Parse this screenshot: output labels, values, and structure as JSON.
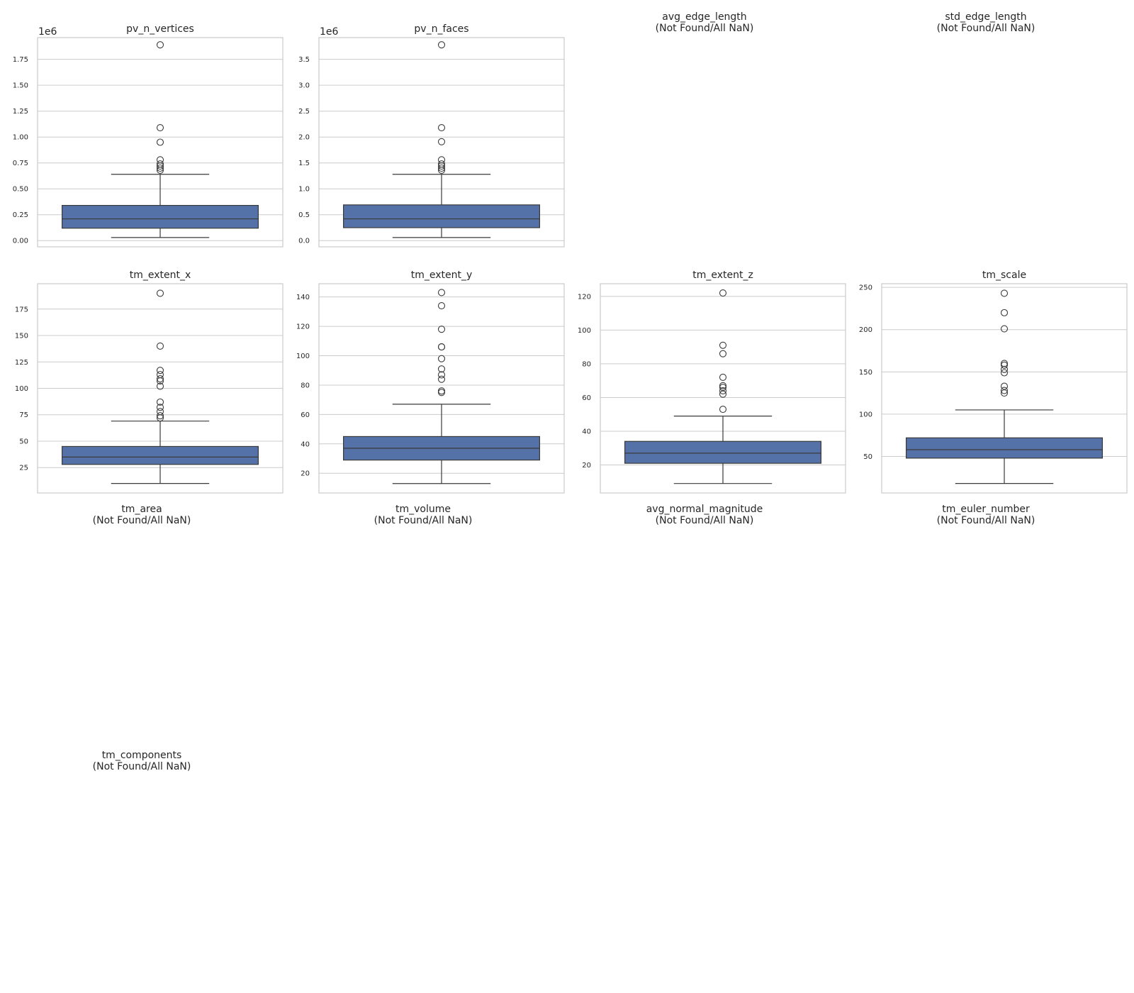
{
  "chart_data": [
    {
      "type": "box",
      "title": "pv_n_vertices",
      "offset_text": "1e6",
      "ylim": [
        -0.06,
        1.96
      ],
      "yticks": [
        0.0,
        0.25,
        0.5,
        0.75,
        1.0,
        1.25,
        1.5,
        1.75
      ],
      "tick_labels": [
        "0.00",
        "0.25",
        "0.50",
        "0.75",
        "1.00",
        "1.25",
        "1.50",
        "1.75"
      ],
      "box": {
        "whisker_low": 0.03,
        "q1": 0.12,
        "median": 0.21,
        "q3": 0.34,
        "whisker_high": 0.64
      },
      "outliers": [
        1.89,
        1.09,
        0.95,
        0.78,
        0.74,
        0.72,
        0.7,
        0.68
      ]
    },
    {
      "type": "box",
      "title": "pv_n_faces",
      "offset_text": "1e6",
      "ylim": [
        -0.12,
        3.92
      ],
      "yticks": [
        0.0,
        0.5,
        1.0,
        1.5,
        2.0,
        2.5,
        3.0,
        3.5
      ],
      "tick_labels": [
        "0.0",
        "0.5",
        "1.0",
        "1.5",
        "2.0",
        "2.5",
        "3.0",
        "3.5"
      ],
      "box": {
        "whisker_low": 0.06,
        "q1": 0.25,
        "median": 0.42,
        "q3": 0.69,
        "whisker_high": 1.28
      },
      "outliers": [
        3.78,
        2.18,
        1.91,
        1.56,
        1.48,
        1.44,
        1.4,
        1.36
      ]
    },
    {
      "type": "empty",
      "title": "avg_edge_length",
      "subtitle": "(Not Found/All NaN)"
    },
    {
      "type": "empty",
      "title": "std_edge_length",
      "subtitle": "(Not Found/All NaN)"
    },
    {
      "type": "box",
      "title": "tm_extent_x",
      "offset_text": "",
      "ylim": [
        1,
        199
      ],
      "yticks": [
        25,
        50,
        75,
        100,
        125,
        150,
        175
      ],
      "tick_labels": [
        "25",
        "50",
        "75",
        "100",
        "125",
        "150",
        "175"
      ],
      "box": {
        "whisker_low": 10,
        "q1": 28,
        "median": 35,
        "q3": 45,
        "whisker_high": 69
      },
      "outliers": [
        190,
        140,
        117,
        113,
        109,
        107,
        102,
        87,
        82,
        78,
        74,
        72
      ]
    },
    {
      "type": "box",
      "title": "tm_extent_y",
      "offset_text": "",
      "ylim": [
        6.6,
        149
      ],
      "yticks": [
        20,
        40,
        60,
        80,
        100,
        120,
        140
      ],
      "tick_labels": [
        "20",
        "40",
        "60",
        "80",
        "100",
        "120",
        "140"
      ],
      "box": {
        "whisker_low": 13,
        "q1": 29,
        "median": 37,
        "q3": 45,
        "whisker_high": 67
      },
      "outliers": [
        143,
        134,
        118,
        106,
        106,
        98,
        91,
        87,
        84,
        76,
        75
      ]
    },
    {
      "type": "box",
      "title": "tm_extent_z",
      "offset_text": "",
      "ylim": [
        3.4,
        127.5
      ],
      "yticks": [
        20,
        40,
        60,
        80,
        100,
        120
      ],
      "tick_labels": [
        "20",
        "40",
        "60",
        "80",
        "100",
        "120"
      ],
      "box": {
        "whisker_low": 9,
        "q1": 21,
        "median": 27,
        "q3": 34,
        "whisker_high": 49
      },
      "outliers": [
        122,
        91,
        86,
        72,
        67,
        66,
        64,
        62,
        53
      ]
    },
    {
      "type": "box",
      "title": "tm_scale",
      "offset_text": "",
      "ylim": [
        6.8,
        254.3
      ],
      "yticks": [
        50,
        100,
        150,
        200,
        250
      ],
      "tick_labels": [
        "50",
        "100",
        "150",
        "200",
        "250"
      ],
      "box": {
        "whisker_low": 18,
        "q1": 48,
        "median": 58,
        "q3": 72,
        "whisker_high": 105
      },
      "outliers": [
        243,
        220,
        201,
        160,
        158,
        153,
        149,
        133,
        128,
        125
      ]
    },
    {
      "type": "empty",
      "title": "tm_area",
      "subtitle": "(Not Found/All NaN)"
    },
    {
      "type": "empty",
      "title": "tm_volume",
      "subtitle": "(Not Found/All NaN)"
    },
    {
      "type": "empty",
      "title": "avg_normal_magnitude",
      "subtitle": "(Not Found/All NaN)"
    },
    {
      "type": "empty",
      "title": "tm_euler_number",
      "subtitle": "(Not Found/All NaN)"
    },
    {
      "type": "empty",
      "title": "tm_components",
      "subtitle": "(Not Found/All NaN)"
    }
  ],
  "colors": {
    "box_fill": "#5572a8",
    "box_edge": "#3a3a3a",
    "grid": "#cccccc",
    "frame": "#cccccc",
    "text": "#262626"
  }
}
